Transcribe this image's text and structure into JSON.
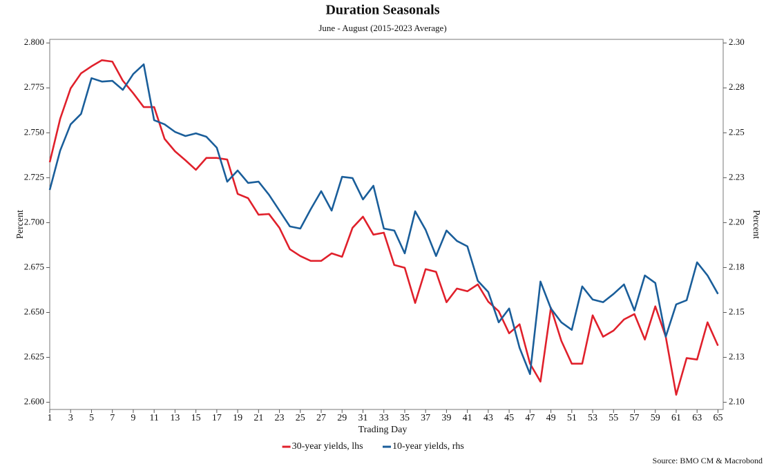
{
  "chart_data": {
    "type": "line",
    "title": "Duration Seasonals",
    "subtitle": "June - August (2015-2023 Average)",
    "x_label": "Trading Day",
    "y_label": "Percent",
    "y2_label": "Percent",
    "source": "Source: BMO CM & Macrobond",
    "x": [
      1,
      2,
      3,
      4,
      5,
      6,
      7,
      8,
      9,
      10,
      11,
      12,
      13,
      14,
      15,
      16,
      17,
      18,
      19,
      20,
      21,
      22,
      23,
      24,
      25,
      26,
      27,
      28,
      29,
      30,
      31,
      32,
      33,
      34,
      35,
      36,
      37,
      38,
      39,
      40,
      41,
      42,
      43,
      44,
      45,
      46,
      47,
      48,
      49,
      50,
      51,
      52,
      53,
      54,
      55,
      56,
      57,
      58,
      59,
      60,
      61,
      62,
      63,
      64,
      65
    ],
    "xlim": [
      1,
      65.5
    ],
    "xticks": [
      1,
      3,
      5,
      7,
      9,
      11,
      13,
      15,
      17,
      19,
      21,
      23,
      25,
      27,
      29,
      31,
      33,
      35,
      37,
      39,
      41,
      43,
      45,
      47,
      49,
      51,
      53,
      55,
      57,
      59,
      61,
      63,
      65
    ],
    "ylim": [
      2.596,
      2.802
    ],
    "yticks": [
      {
        "value": 2.6,
        "label": "2.600"
      },
      {
        "value": 2.625,
        "label": "2.625"
      },
      {
        "value": 2.65,
        "label": "2.650"
      },
      {
        "value": 2.675,
        "label": "2.675"
      },
      {
        "value": 2.7,
        "label": "2.700"
      },
      {
        "value": 2.725,
        "label": "2.725"
      },
      {
        "value": 2.75,
        "label": "2.750"
      },
      {
        "value": 2.775,
        "label": "2.775"
      },
      {
        "value": 2.8,
        "label": "2.800"
      }
    ],
    "y2lim": [
      2.096,
      2.302
    ],
    "y2ticks": [
      {
        "value": 2.1,
        "label": "2.10"
      },
      {
        "value": 2.125,
        "label": "2.13"
      },
      {
        "value": 2.15,
        "label": "2.15"
      },
      {
        "value": 2.175,
        "label": "2.18"
      },
      {
        "value": 2.2,
        "label": "2.20"
      },
      {
        "value": 2.225,
        "label": "2.23"
      },
      {
        "value": 2.25,
        "label": "2.25"
      },
      {
        "value": 2.275,
        "label": "2.28"
      },
      {
        "value": 2.3,
        "label": "2.30"
      }
    ],
    "legend": "bottom",
    "series": [
      {
        "name": "30-year yields, lhs",
        "color": "#e0202b",
        "axis": "y",
        "values": [
          2.7336,
          2.7578,
          2.7747,
          2.7831,
          2.787,
          2.7904,
          2.7896,
          2.779,
          2.772,
          2.7643,
          2.7643,
          2.7466,
          2.7397,
          2.7347,
          2.7294,
          2.736,
          2.736,
          2.7351,
          2.716,
          2.7136,
          2.7044,
          2.7048,
          2.6971,
          2.6852,
          2.6814,
          2.6787,
          2.6787,
          2.6829,
          2.681,
          2.6971,
          2.7033,
          2.6933,
          2.6944,
          2.6764,
          2.6749,
          2.6553,
          2.6741,
          2.6726,
          2.6557,
          2.6633,
          2.6618,
          2.6656,
          2.656,
          2.6507,
          2.6384,
          2.6434,
          2.6215,
          2.6115,
          2.6526,
          2.6342,
          2.6215,
          2.6215,
          2.6484,
          2.6365,
          2.6399,
          2.6461,
          2.6491,
          2.6349,
          2.6534,
          2.6365,
          2.6042,
          2.6246,
          2.6238,
          2.6445,
          2.6315
        ]
      },
      {
        "name": "10-year yields, rhs",
        "color": "#1a5e9a",
        "axis": "y2",
        "values": [
          2.2182,
          2.2401,
          2.2547,
          2.2605,
          2.2804,
          2.2785,
          2.2789,
          2.2739,
          2.2827,
          2.2881,
          2.257,
          2.2547,
          2.2505,
          2.2482,
          2.2497,
          2.2478,
          2.2417,
          2.2228,
          2.229,
          2.2221,
          2.2228,
          2.2155,
          2.2067,
          2.1979,
          2.1967,
          2.2075,
          2.2175,
          2.2067,
          2.2255,
          2.2248,
          2.2129,
          2.2205,
          2.1967,
          2.1956,
          2.1829,
          2.2063,
          2.196,
          2.1814,
          2.1956,
          2.1898,
          2.1868,
          2.1676,
          2.1614,
          2.1445,
          2.1522,
          2.1303,
          2.1157,
          2.1672,
          2.1522,
          2.1445,
          2.1403,
          2.1645,
          2.1572,
          2.1557,
          2.1603,
          2.1656,
          2.1511,
          2.1706,
          2.1664,
          2.1365,
          2.1545,
          2.1568,
          2.1779,
          2.1706,
          2.1603
        ]
      }
    ]
  }
}
